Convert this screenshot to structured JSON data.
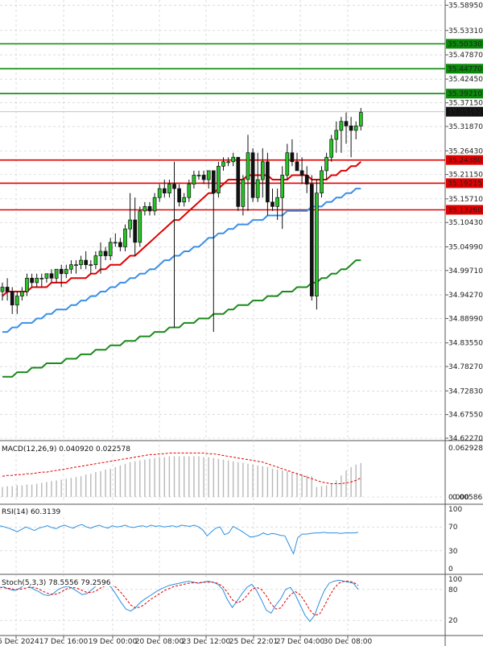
{
  "chart_data": [
    {
      "type": "candlestick",
      "ylim": [
        34.6227,
        35.5939
      ],
      "y_ticks": [
        "35.58950",
        "35.53310",
        "35.47870",
        "35.42450",
        "35.37150",
        "35.31870",
        "35.26430",
        "35.21150",
        "35.15710",
        "35.10430",
        "35.04990",
        "34.99710",
        "34.94270",
        "34.88990",
        "34.83550",
        "34.78270",
        "34.72830",
        "34.67550",
        "34.62270"
      ],
      "x_ticks": [
        "16 Dec 2024",
        "17 Dec 16:00",
        "19 Dec 00:00",
        "20 Dec 08:00",
        "23 Dec 12:00",
        "25 Dec 22:01",
        "27 Dec 04:00",
        "30 Dec 08:00"
      ],
      "levels": [
        {
          "value": 35.5033,
          "label": "35.50330",
          "color": "#0a8a0a"
        },
        {
          "value": 35.4477,
          "label": "35.44770",
          "color": "#0a8a0a"
        },
        {
          "value": 35.3921,
          "label": "35.39210",
          "color": "#0a8a0a"
        },
        {
          "value": 35.2438,
          "label": "35.24380",
          "color": "#e00000"
        },
        {
          "value": 35.1921,
          "label": "35.19215",
          "color": "#e00000"
        },
        {
          "value": 35.1326,
          "label": "35.13260",
          "color": "#e00000"
        }
      ],
      "last_price": {
        "value": 35.35162,
        "label": "35.35162"
      },
      "ohlc": [
        [
          34.95,
          34.97,
          34.93,
          34.96
        ],
        [
          34.96,
          34.98,
          34.93,
          34.95
        ],
        [
          34.95,
          34.96,
          34.9,
          34.92
        ],
        [
          34.92,
          34.95,
          34.9,
          34.94
        ],
        [
          34.94,
          34.96,
          34.93,
          34.95
        ],
        [
          34.95,
          34.99,
          34.94,
          34.98
        ],
        [
          34.98,
          34.99,
          34.96,
          34.97
        ],
        [
          34.97,
          34.99,
          34.96,
          34.98
        ],
        [
          34.98,
          34.99,
          34.96,
          34.98
        ],
        [
          34.98,
          34.99,
          34.97,
          34.99
        ],
        [
          34.99,
          35.0,
          34.97,
          34.98
        ],
        [
          34.98,
          35.0,
          34.97,
          35.0
        ],
        [
          35.0,
          35.01,
          34.96,
          34.99
        ],
        [
          34.99,
          35.01,
          34.98,
          35.0
        ],
        [
          35.0,
          35.02,
          34.99,
          35.01
        ],
        [
          35.01,
          35.02,
          34.99,
          35.01
        ],
        [
          35.01,
          35.03,
          35.0,
          35.02
        ],
        [
          35.02,
          35.04,
          35.0,
          35.01
        ],
        [
          35.01,
          35.02,
          34.99,
          35.01
        ],
        [
          35.01,
          35.04,
          35.0,
          35.03
        ],
        [
          35.03,
          35.06,
          34.99,
          35.04
        ],
        [
          35.04,
          35.05,
          35.02,
          35.03
        ],
        [
          35.03,
          35.07,
          35.02,
          35.06
        ],
        [
          35.06,
          35.08,
          35.05,
          35.06
        ],
        [
          35.06,
          35.07,
          35.04,
          35.05
        ],
        [
          35.05,
          35.1,
          35.04,
          35.09
        ],
        [
          35.09,
          35.17,
          35.07,
          35.11
        ],
        [
          35.11,
          35.16,
          35.03,
          35.06
        ],
        [
          35.06,
          35.14,
          35.05,
          35.13
        ],
        [
          35.13,
          35.15,
          35.12,
          35.14
        ],
        [
          35.14,
          35.15,
          35.12,
          35.13
        ],
        [
          35.13,
          35.17,
          35.12,
          35.16
        ],
        [
          35.16,
          35.19,
          35.15,
          35.18
        ],
        [
          35.18,
          35.2,
          35.16,
          35.17
        ],
        [
          35.17,
          35.2,
          35.16,
          35.19
        ],
        [
          35.19,
          35.24,
          34.87,
          35.18
        ],
        [
          35.18,
          35.19,
          35.14,
          35.15
        ],
        [
          35.15,
          35.17,
          35.14,
          35.16
        ],
        [
          35.16,
          35.2,
          35.15,
          35.19
        ],
        [
          35.19,
          35.22,
          35.18,
          35.21
        ],
        [
          35.21,
          35.22,
          35.2,
          35.21
        ],
        [
          35.21,
          35.22,
          35.19,
          35.2
        ],
        [
          35.2,
          35.22,
          35.18,
          35.22
        ],
        [
          35.22,
          35.22,
          34.86,
          35.17
        ],
        [
          35.17,
          35.24,
          35.16,
          35.23
        ],
        [
          35.23,
          35.25,
          35.22,
          35.24
        ],
        [
          35.24,
          35.25,
          35.23,
          35.24
        ],
        [
          35.24,
          35.26,
          35.23,
          35.25
        ],
        [
          35.25,
          35.25,
          35.13,
          35.14
        ],
        [
          35.14,
          35.21,
          35.12,
          35.2
        ],
        [
          35.2,
          35.3,
          35.13,
          35.26
        ],
        [
          35.26,
          35.27,
          35.15,
          35.16
        ],
        [
          35.16,
          35.26,
          35.15,
          35.2
        ],
        [
          35.2,
          35.27,
          35.16,
          35.24
        ],
        [
          35.24,
          35.26,
          35.12,
          35.15
        ],
        [
          35.15,
          35.18,
          35.13,
          35.14
        ],
        [
          35.14,
          35.18,
          35.11,
          35.16
        ],
        [
          35.16,
          35.23,
          35.09,
          35.21
        ],
        [
          35.21,
          35.28,
          35.2,
          35.26
        ],
        [
          35.26,
          35.29,
          35.23,
          35.24
        ],
        [
          35.24,
          35.26,
          35.22,
          35.22
        ],
        [
          35.22,
          35.25,
          35.19,
          35.21
        ],
        [
          35.21,
          35.23,
          35.17,
          35.19
        ],
        [
          35.19,
          35.21,
          34.93,
          34.94
        ],
        [
          34.94,
          35.2,
          34.91,
          35.17
        ],
        [
          35.17,
          35.23,
          35.16,
          35.22
        ],
        [
          35.22,
          35.26,
          35.2,
          35.25
        ],
        [
          35.25,
          35.3,
          35.24,
          35.29
        ],
        [
          35.29,
          35.33,
          35.26,
          35.31
        ],
        [
          35.31,
          35.34,
          35.26,
          35.33
        ],
        [
          35.33,
          35.35,
          35.28,
          35.32
        ],
        [
          35.32,
          35.34,
          35.25,
          35.31
        ],
        [
          35.31,
          35.33,
          35.29,
          35.32
        ],
        [
          35.32,
          35.36,
          35.31,
          35.35
        ]
      ],
      "series": [
        {
          "name": "",
          "color": "#e00000",
          "values": [
            34.94,
            34.95,
            34.95,
            34.95,
            34.95,
            34.95,
            34.96,
            34.96,
            34.96,
            34.96,
            34.97,
            34.97,
            34.97,
            34.97,
            34.98,
            34.98,
            34.98,
            34.98,
            34.99,
            34.99,
            35.0,
            35.0,
            35.01,
            35.01,
            35.01,
            35.02,
            35.03,
            35.03,
            35.04,
            35.05,
            35.06,
            35.07,
            35.08,
            35.09,
            35.1,
            35.11,
            35.11,
            35.12,
            35.13,
            35.14,
            35.15,
            35.16,
            35.17,
            35.17,
            35.18,
            35.19,
            35.2,
            35.2,
            35.2,
            35.2,
            35.21,
            35.21,
            35.21,
            35.21,
            35.21,
            35.2,
            35.2,
            35.2,
            35.2,
            35.21,
            35.21,
            35.21,
            35.21,
            35.2,
            35.2,
            35.2,
            35.2,
            35.21,
            35.21,
            35.22,
            35.22,
            35.23,
            35.23,
            35.24
          ]
        },
        {
          "name": "",
          "color": "#3a8fe8",
          "values": [
            34.86,
            34.86,
            34.87,
            34.87,
            34.88,
            34.88,
            34.88,
            34.89,
            34.89,
            34.9,
            34.9,
            34.91,
            34.91,
            34.91,
            34.92,
            34.92,
            34.93,
            34.93,
            34.94,
            34.94,
            34.95,
            34.95,
            34.96,
            34.96,
            34.97,
            34.97,
            34.98,
            34.98,
            34.99,
            34.99,
            35.0,
            35.0,
            35.01,
            35.02,
            35.02,
            35.03,
            35.03,
            35.04,
            35.04,
            35.05,
            35.05,
            35.06,
            35.07,
            35.07,
            35.08,
            35.08,
            35.09,
            35.09,
            35.1,
            35.1,
            35.1,
            35.11,
            35.11,
            35.11,
            35.12,
            35.12,
            35.12,
            35.12,
            35.13,
            35.13,
            35.13,
            35.13,
            35.13,
            35.14,
            35.14,
            35.14,
            35.15,
            35.15,
            35.16,
            35.16,
            35.17,
            35.17,
            35.18,
            35.18
          ]
        },
        {
          "name": "",
          "color": "#1a8a1a",
          "values": [
            34.76,
            34.76,
            34.76,
            34.77,
            34.77,
            34.77,
            34.78,
            34.78,
            34.78,
            34.79,
            34.79,
            34.79,
            34.79,
            34.8,
            34.8,
            34.8,
            34.81,
            34.81,
            34.81,
            34.82,
            34.82,
            34.82,
            34.83,
            34.83,
            34.83,
            34.84,
            34.84,
            34.84,
            34.85,
            34.85,
            34.85,
            34.86,
            34.86,
            34.86,
            34.87,
            34.87,
            34.87,
            34.88,
            34.88,
            34.88,
            34.89,
            34.89,
            34.89,
            34.9,
            34.9,
            34.9,
            34.91,
            34.91,
            34.92,
            34.92,
            34.92,
            34.93,
            34.93,
            34.93,
            34.94,
            34.94,
            34.94,
            34.95,
            34.95,
            34.95,
            34.96,
            34.96,
            34.96,
            34.97,
            34.97,
            34.98,
            34.98,
            34.99,
            34.99,
            35.0,
            35.0,
            35.01,
            35.02,
            35.02
          ]
        }
      ]
    },
    {
      "type": "bar",
      "label": "MACD(12,26,9) 0.040920 0.022578",
      "y_ticks": [
        "0.062928",
        "0.000",
        "0.005862"
      ],
      "ylim": [
        0,
        0.065
      ],
      "histogram": [
        0.012,
        0.013,
        0.013,
        0.014,
        0.014,
        0.015,
        0.015,
        0.016,
        0.017,
        0.018,
        0.019,
        0.02,
        0.021,
        0.022,
        0.023,
        0.024,
        0.025,
        0.027,
        0.028,
        0.03,
        0.031,
        0.033,
        0.034,
        0.036,
        0.038,
        0.04,
        0.042,
        0.043,
        0.044,
        0.045,
        0.046,
        0.047,
        0.048,
        0.048,
        0.049,
        0.049,
        0.049,
        0.049,
        0.049,
        0.049,
        0.049,
        0.048,
        0.048,
        0.047,
        0.046,
        0.045,
        0.044,
        0.043,
        0.042,
        0.041,
        0.04,
        0.039,
        0.038,
        0.037,
        0.036,
        0.034,
        0.033,
        0.032,
        0.031,
        0.03,
        0.029,
        0.028,
        0.026,
        0.025,
        0.012,
        0.013,
        0.014,
        0.016,
        0.02,
        0.026,
        0.032,
        0.036,
        0.039,
        0.041
      ],
      "signal": [
        0.025,
        0.026,
        0.026,
        0.027,
        0.027,
        0.028,
        0.028,
        0.029,
        0.03,
        0.03,
        0.031,
        0.032,
        0.033,
        0.034,
        0.035,
        0.036,
        0.037,
        0.038,
        0.039,
        0.04,
        0.041,
        0.042,
        0.043,
        0.044,
        0.045,
        0.046,
        0.047,
        0.048,
        0.049,
        0.05,
        0.051,
        0.051,
        0.052,
        0.052,
        0.053,
        0.053,
        0.053,
        0.053,
        0.053,
        0.053,
        0.053,
        0.053,
        0.052,
        0.052,
        0.051,
        0.05,
        0.049,
        0.048,
        0.047,
        0.046,
        0.045,
        0.044,
        0.043,
        0.042,
        0.04,
        0.038,
        0.036,
        0.034,
        0.032,
        0.03,
        0.028,
        0.026,
        0.024,
        0.022,
        0.02,
        0.018,
        0.017,
        0.016,
        0.016,
        0.016,
        0.017,
        0.018,
        0.02,
        0.023
      ]
    },
    {
      "type": "line",
      "label": "RSI(14) 60.3139",
      "y_ticks": [
        "100",
        "70",
        "30",
        "0"
      ],
      "ylim": [
        0,
        100
      ],
      "values": [
        72,
        70,
        68,
        65,
        62,
        66,
        70,
        67,
        64,
        68,
        70,
        72,
        69,
        67,
        71,
        73,
        70,
        68,
        72,
        74,
        70,
        68,
        71,
        73,
        70,
        68,
        72,
        70,
        71,
        73,
        70,
        69,
        71,
        72,
        70,
        73,
        71,
        72,
        70,
        71,
        72,
        70,
        73,
        72,
        71,
        73,
        70,
        65,
        55,
        62,
        68,
        70,
        57,
        60,
        71,
        67,
        63,
        58,
        53,
        54,
        56,
        60,
        57,
        59,
        58,
        56,
        55,
        40,
        25,
        52,
        58,
        58,
        59,
        60,
        60,
        61,
        60,
        60,
        60,
        59,
        60,
        60,
        60,
        61
      ]
    },
    {
      "type": "line",
      "label": "Stoch(5,3,3) 78.5556 79.2596",
      "y_ticks": [
        "100",
        "80",
        "20",
        "0"
      ],
      "ylim": [
        0,
        100
      ],
      "k_values": [
        88,
        84,
        80,
        78,
        82,
        88,
        86,
        80,
        76,
        70,
        68,
        72,
        80,
        84,
        86,
        82,
        76,
        70,
        72,
        80,
        88,
        92,
        90,
        84,
        70,
        55,
        42,
        38,
        45,
        55,
        62,
        68,
        74,
        80,
        84,
        88,
        90,
        92,
        94,
        96,
        94,
        92,
        94,
        96,
        94,
        90,
        80,
        60,
        45,
        58,
        72,
        84,
        90,
        78,
        60,
        40,
        34,
        50,
        62,
        80,
        84,
        70,
        50,
        30,
        18,
        30,
        56,
        78,
        92,
        96,
        98,
        96,
        94,
        92,
        80
      ],
      "d_values": [
        84,
        83,
        82,
        80,
        80,
        82,
        84,
        84,
        81,
        76,
        72,
        70,
        72,
        77,
        82,
        84,
        82,
        78,
        74,
        74,
        78,
        84,
        88,
        88,
        84,
        74,
        62,
        50,
        44,
        46,
        52,
        60,
        66,
        72,
        78,
        82,
        86,
        88,
        90,
        92,
        93,
        93,
        94,
        94,
        94,
        92,
        86,
        74,
        60,
        54,
        58,
        68,
        80,
        84,
        80,
        68,
        52,
        42,
        44,
        58,
        70,
        76,
        70,
        56,
        40,
        30,
        32,
        48,
        66,
        82,
        92,
        96,
        96,
        94,
        88
      ]
    }
  ]
}
